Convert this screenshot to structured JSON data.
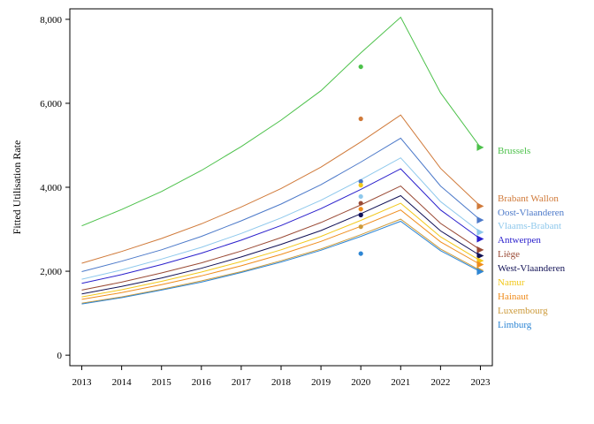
{
  "chart_data": {
    "type": "line",
    "xlabel": "",
    "ylabel": "Fitted Utilisation Rate",
    "x": [
      2013,
      2014,
      2015,
      2016,
      2017,
      2018,
      2019,
      2020,
      2021,
      2022,
      2023
    ],
    "xlim": [
      2012.7,
      2023.3
    ],
    "ylim": [
      -250,
      8250
    ],
    "yticks": [
      0,
      2000,
      4000,
      6000,
      8000
    ],
    "ytick_labels": [
      "0",
      "2,000",
      "4,000",
      "6,000",
      "8,000"
    ],
    "legend_position": "right",
    "series": [
      {
        "name": "Brussels",
        "color": "#4cc14a",
        "values": [
          3080,
          3470,
          3900,
          4400,
          4970,
          5600,
          6300,
          7200,
          8050,
          6250,
          4950
        ],
        "point_2020": 6870
      },
      {
        "name": "Brabant Wallon",
        "color": "#d07a3a",
        "values": [
          2190,
          2470,
          2780,
          3130,
          3530,
          3970,
          4480,
          5080,
          5720,
          4450,
          3550
        ],
        "point_2020": 5630
      },
      {
        "name": "Oost-Vlaanderen",
        "color": "#4c79c9",
        "values": [
          1990,
          2240,
          2510,
          2830,
          3200,
          3600,
          4060,
          4600,
          5170,
          4030,
          3220
        ],
        "point_2020": 4140
      },
      {
        "name": "Vlaams-Brabant",
        "color": "#8ec8ec",
        "values": [
          1810,
          2030,
          2290,
          2570,
          2900,
          3270,
          3690,
          4180,
          4700,
          3660,
          2930
        ],
        "point_2020": 3780
      },
      {
        "name": "Antwerpen",
        "color": "#2a1fcc",
        "values": [
          1710,
          1920,
          2160,
          2430,
          2740,
          3090,
          3490,
          3950,
          4440,
          3460,
          2770
        ],
        "point_2020": 3340
      },
      {
        "name": "Liège",
        "color": "#9a4a35",
        "values": [
          1550,
          1740,
          1960,
          2200,
          2480,
          2800,
          3160,
          3580,
          4030,
          3140,
          2510
        ],
        "point_2020": 3620
      },
      {
        "name": "West-Vlaanderen",
        "color": "#111155",
        "values": [
          1460,
          1640,
          1840,
          2070,
          2340,
          2640,
          2970,
          3370,
          3800,
          2960,
          2370
        ],
        "point_2020": 3340
      },
      {
        "name": "Namur",
        "color": "#f2c81c",
        "values": [
          1390,
          1560,
          1760,
          1980,
          2230,
          2510,
          2830,
          3210,
          3620,
          2820,
          2250
        ],
        "point_2020": 4050
      },
      {
        "name": "Hainaut",
        "color": "#ef8c1c",
        "values": [
          1330,
          1490,
          1680,
          1890,
          2130,
          2400,
          2710,
          3070,
          3460,
          2700,
          2160
        ],
        "point_2020": 3480
      },
      {
        "name": "Luxembourg",
        "color": "#cc9a3a",
        "values": [
          1240,
          1390,
          1570,
          1770,
          1990,
          2250,
          2530,
          2870,
          3240,
          2530,
          2020
        ],
        "point_2020": 3060
      },
      {
        "name": "Limburg",
        "color": "#2e86d4",
        "values": [
          1220,
          1370,
          1550,
          1740,
          1970,
          2220,
          2500,
          2830,
          3190,
          2490,
          1990
        ],
        "point_2020": 2420
      }
    ]
  }
}
